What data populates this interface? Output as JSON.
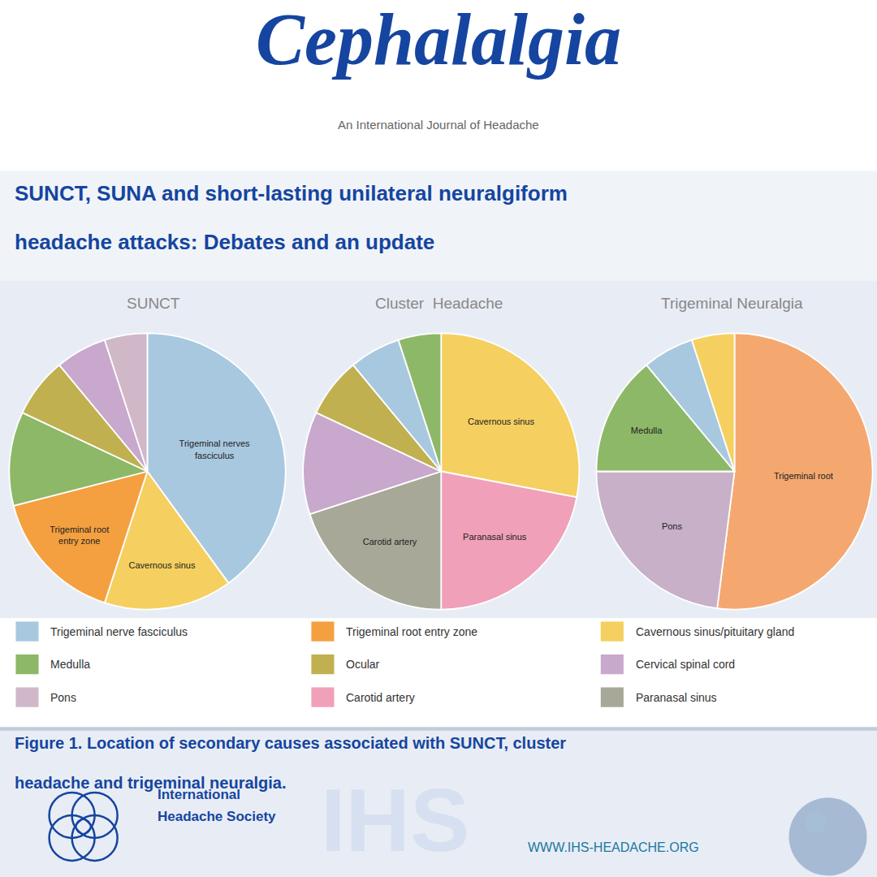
{
  "title": "Cephalalgia",
  "subtitle": "An International Journal of Headache",
  "annotations": [
    "SUNCT, SUNA and short-lasting unilateral neuralgiform",
    "headache attacks: Debates and an update",
    "Figure 1. Location of secondary causes associated with SUNCT, cluster",
    "headache and trigeminal neuralgia.",
    "International",
    "Headache Society",
    "WWW.IHS-HEADACHE.ORG",
    "IHS"
  ],
  "legend_entries": [
    {
      "name": "Trigeminal nerve fasciculus",
      "color": "#A8C8E0"
    },
    {
      "name": "Trigeminal root entry zone",
      "color": "#F4A040"
    },
    {
      "name": "Cavernous sinus/pituitary gland",
      "color": "#F5D060"
    },
    {
      "name": "Medulla",
      "color": "#8DB868"
    },
    {
      "name": "Ocular",
      "color": "#C0B050"
    },
    {
      "name": "Cervical spinal cord",
      "color": "#C8A8CC"
    },
    {
      "name": "Pons",
      "color": "#D0B8C8"
    },
    {
      "name": "Carotid artery",
      "color": "#F0A0B8"
    },
    {
      "name": "Paranasal sinus",
      "color": "#A8A898"
    }
  ],
  "chart_data": [
    {
      "type": "pie",
      "title": "SUNCT",
      "categories": [
        "Trigeminal nerves\nfasciculus",
        "Cavernous sinus",
        "Trigeminal root\nentry zone",
        null,
        null,
        null,
        null
      ],
      "values": [
        40,
        15,
        16,
        11,
        7,
        6,
        5
      ],
      "colors": [
        "#A8C8E0",
        "#F5D060",
        "#F4A040",
        "#8DB868",
        "#C0B050",
        "#C8A8CC",
        "#D0B8C8"
      ]
    },
    {
      "type": "pie",
      "title": "Cluster  Headache",
      "categories": [
        "Cavernous sinus",
        "Paranasal sinus",
        "Carotid artery",
        null,
        null,
        null,
        null
      ],
      "values": [
        28,
        22,
        20,
        12,
        7,
        6,
        5
      ],
      "colors": [
        "#F5D060",
        "#F0A0B8",
        "#A8A898",
        "#C8A8CC",
        "#C0B050",
        "#A8C8E0",
        "#8DB868"
      ]
    },
    {
      "type": "pie",
      "title": "Trigeminal Neuralgia",
      "categories": [
        "Trigeminal root",
        "Pons",
        "Medulla",
        null,
        null
      ],
      "values": [
        52,
        23,
        14,
        6,
        5
      ],
      "colors": [
        "#F4A870",
        "#C8B0C8",
        "#8DB868",
        "#A8C8E0",
        "#F5D060"
      ]
    }
  ]
}
